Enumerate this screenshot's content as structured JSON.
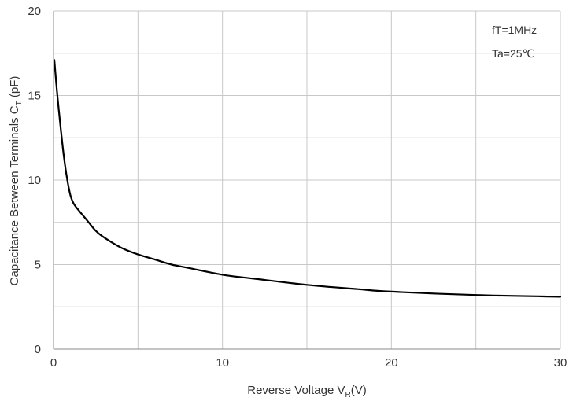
{
  "chart_data": {
    "type": "line",
    "title": "",
    "xlabel": {
      "main": "Reverse Voltage V",
      "sub": "R",
      "tail": "(V)"
    },
    "ylabel": {
      "main": "Capacitance Between Terminals C",
      "sub": "T",
      "tail": " (pF)"
    },
    "xlim": [
      0,
      30
    ],
    "ylim": [
      0,
      20
    ],
    "x_ticks": [
      0,
      10,
      20,
      30
    ],
    "y_ticks": [
      0,
      5,
      10,
      15,
      20
    ],
    "x_grid": [
      0,
      5,
      10,
      15,
      20,
      25,
      30
    ],
    "y_grid": [
      0,
      2.5,
      5,
      7.5,
      10,
      12.5,
      15,
      17.5,
      20
    ],
    "grid": true,
    "annotations": [
      "fT=1MHz",
      "Ta=25℃"
    ],
    "series": [
      {
        "color": "#000000",
        "x": [
          0.05,
          0.2,
          0.4,
          0.6,
          0.8,
          1.0,
          1.2,
          1.5,
          2.0,
          2.5,
          3.0,
          4.0,
          5.0,
          6.0,
          7.0,
          8.0,
          10.0,
          12.0,
          15.0,
          18.0,
          20.0,
          25.0,
          30.0
        ],
        "y": [
          17.1,
          15.3,
          13.3,
          11.5,
          10.1,
          9.1,
          8.6,
          8.2,
          7.6,
          7.0,
          6.6,
          6.0,
          5.6,
          5.3,
          5.0,
          4.8,
          4.4,
          4.15,
          3.8,
          3.55,
          3.4,
          3.2,
          3.1
        ]
      }
    ]
  }
}
